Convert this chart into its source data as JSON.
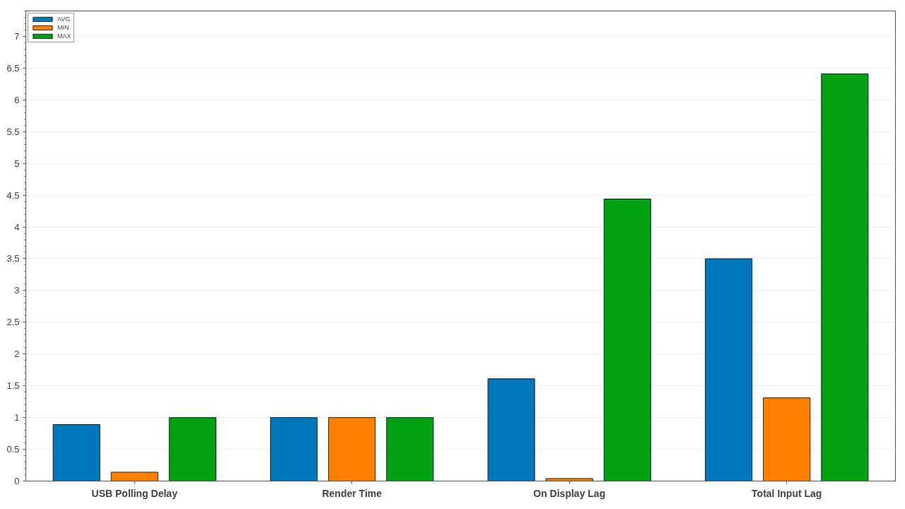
{
  "chart_data": {
    "type": "bar",
    "categories": [
      "USB Polling Delay",
      "Render Time",
      "On Display Lag",
      "Total Input Lag"
    ],
    "series": [
      {
        "name": "AVG",
        "color": "#0077bb",
        "values": [
          0.89,
          1.0,
          1.61,
          3.5
        ]
      },
      {
        "name": "MIN",
        "color": "#ff8000",
        "values": [
          0.14,
          1.0,
          0.04,
          1.31
        ]
      },
      {
        "name": "MAX",
        "color": "#00a014",
        "values": [
          1.0,
          1.0,
          4.44,
          6.41
        ]
      }
    ],
    "ylim": [
      0,
      7.4
    ],
    "yticks": [
      0,
      0.5,
      1,
      1.5,
      2,
      2.5,
      3,
      3.5,
      4,
      4.5,
      5,
      5.5,
      6,
      6.5,
      7
    ],
    "grid": "y",
    "legend": "top left"
  }
}
